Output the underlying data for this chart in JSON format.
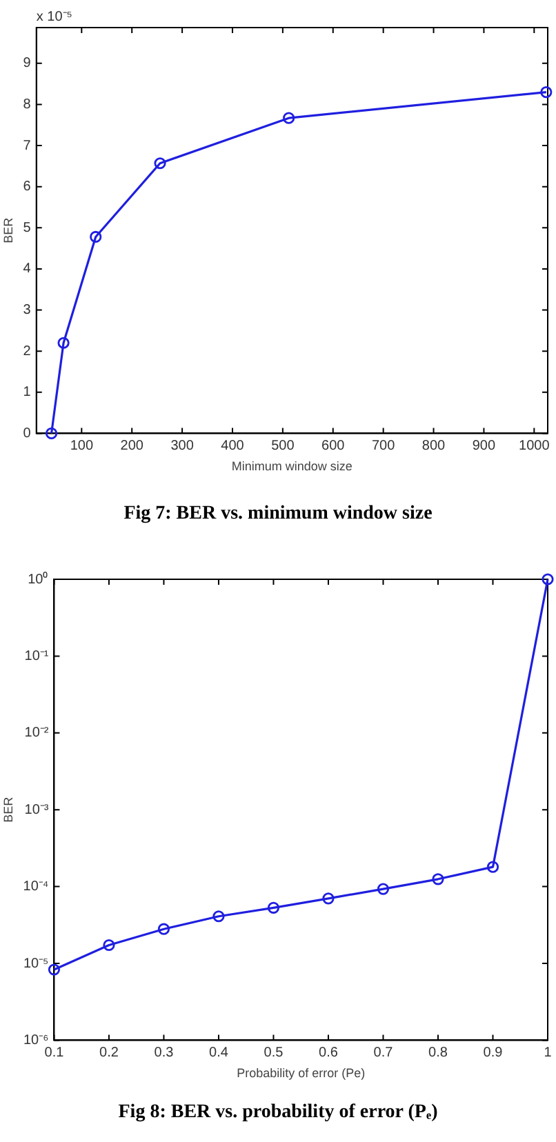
{
  "chart_data": [
    {
      "type": "line",
      "xlabel": "Minimum window size",
      "ylabel": "BER",
      "annotations": [
        "x 10⁻⁵",
        "Fig 7: BER vs. minimum window size"
      ],
      "x": [
        40,
        64,
        128,
        256,
        512,
        1024
      ],
      "series": [
        {
          "color": "#1f1fe0",
          "values": [
            0,
            2.2,
            4.78,
            6.57,
            7.67,
            8.3
          ]
        }
      ],
      "xlim": [
        10,
        1027
      ],
      "xticks": [
        100,
        200,
        300,
        400,
        500,
        600,
        700,
        800,
        900,
        1000
      ],
      "ylim": [
        0,
        9.87
      ],
      "yticks": [
        0,
        1,
        2,
        3,
        4,
        5,
        6,
        7,
        8,
        9
      ],
      "grid": false,
      "legend": false,
      "marker": "circle",
      "line_style": "solid"
    },
    {
      "type": "line",
      "xlabel": "Probability of error (Pe)",
      "ylabel": "BER",
      "annotations": [
        "Fig 8: BER vs. probability of error (Pₑ)"
      ],
      "x": [
        0.1,
        0.2,
        0.3,
        0.4,
        0.5,
        0.6,
        0.7,
        0.8,
        0.9,
        1
      ],
      "series": [
        {
          "color": "#1f1fe0",
          "values": [
            8.3e-06,
            1.73e-05,
            2.8e-05,
            4.1e-05,
            5.3e-05,
            7e-05,
            9.3e-05,
            0.000125,
            0.00018,
            1
          ]
        }
      ],
      "log": true,
      "xlim": [
        0.1,
        1
      ],
      "xticks": [
        0.1,
        0.2,
        0.3,
        0.4,
        0.5,
        0.6,
        0.7,
        0.8,
        0.9,
        1
      ],
      "ylim": [
        1e-06,
        1
      ],
      "yticks": [
        {
          "value": 1e-06,
          "label": "10⁻⁶"
        },
        {
          "value": 1e-05,
          "label": "10⁻⁵"
        },
        {
          "value": 0.0001,
          "label": "10⁻⁴"
        },
        {
          "value": 0.001,
          "label": "10⁻³"
        },
        {
          "value": 0.01,
          "label": "10⁻²"
        },
        {
          "value": 0.1,
          "label": "10⁻¹"
        },
        {
          "value": 1,
          "label": "10⁰"
        }
      ],
      "grid": false,
      "legend": false,
      "marker": "circle",
      "line_style": "solid"
    }
  ]
}
